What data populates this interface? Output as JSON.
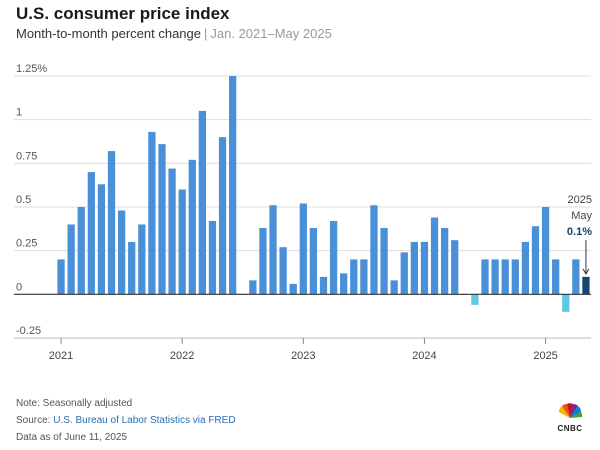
{
  "header": {
    "title": "U.S. consumer price index",
    "subtitle_main": "Month-to-month percent change",
    "subtitle_separator": "|",
    "subtitle_range": "Jan. 2021–May 2025"
  },
  "chart_data": {
    "type": "bar",
    "title": "U.S. consumer price index",
    "subtitle": "Month-to-month percent change | Jan. 2021–May 2025",
    "xlabel": "",
    "ylabel": "",
    "ylim": [
      -0.25,
      1.25
    ],
    "yticks": [
      -0.25,
      0,
      0.25,
      0.5,
      0.75,
      1,
      1.25
    ],
    "ytick_labels": [
      "-0.25",
      "0",
      "0.25",
      "0.5",
      "0.75",
      "1",
      "1.25%"
    ],
    "xtick_labels": [
      "2021",
      "2022",
      "2023",
      "2024",
      "2025"
    ],
    "xtick_months": [
      "2021-01",
      "2022-01",
      "2023-01",
      "2024-01",
      "2025-01"
    ],
    "grid": true,
    "colors": {
      "positive": "#4a90d9",
      "negative": "#5ec8e6",
      "highlight": "#17456e",
      "grid": "#dddddd",
      "axis": "#333333"
    },
    "months": [
      "2021-01",
      "2021-02",
      "2021-03",
      "2021-04",
      "2021-05",
      "2021-06",
      "2021-07",
      "2021-08",
      "2021-09",
      "2021-10",
      "2021-11",
      "2021-12",
      "2022-01",
      "2022-02",
      "2022-03",
      "2022-04",
      "2022-05",
      "2022-06",
      "2022-07",
      "2022-08",
      "2022-09",
      "2022-10",
      "2022-11",
      "2022-12",
      "2023-01",
      "2023-02",
      "2023-03",
      "2023-04",
      "2023-05",
      "2023-06",
      "2023-07",
      "2023-08",
      "2023-09",
      "2023-10",
      "2023-11",
      "2023-12",
      "2024-01",
      "2024-02",
      "2024-03",
      "2024-04",
      "2024-05",
      "2024-06",
      "2024-07",
      "2024-08",
      "2024-09",
      "2024-10",
      "2024-11",
      "2024-12",
      "2025-01",
      "2025-02",
      "2025-03",
      "2025-04",
      "2025-05"
    ],
    "values": [
      0.2,
      0.4,
      0.5,
      0.7,
      0.63,
      0.82,
      0.48,
      0.3,
      0.4,
      0.93,
      0.86,
      0.72,
      0.6,
      0.77,
      1.05,
      0.42,
      0.9,
      1.25,
      0.0,
      0.08,
      0.38,
      0.51,
      0.27,
      0.06,
      0.52,
      0.38,
      0.1,
      0.42,
      0.12,
      0.2,
      0.2,
      0.51,
      0.38,
      0.08,
      0.24,
      0.3,
      0.3,
      0.44,
      0.38,
      0.31,
      0.0,
      -0.06,
      0.2,
      0.2,
      0.2,
      0.2,
      0.3,
      0.39,
      0.5,
      0.2,
      -0.1,
      0.2,
      0.1
    ],
    "highlight_month": "2025-05",
    "annotation": {
      "year": "2025",
      "month": "May",
      "value": "0.1%"
    }
  },
  "footer": {
    "note": "Note: Seasonally adjusted",
    "source_prefix": "Source: ",
    "source_link": "U.S. Bureau of Labor Statistics via FRED",
    "data_as_of": "Data as of June 11, 2025"
  },
  "logo": {
    "text": "CNBC"
  }
}
